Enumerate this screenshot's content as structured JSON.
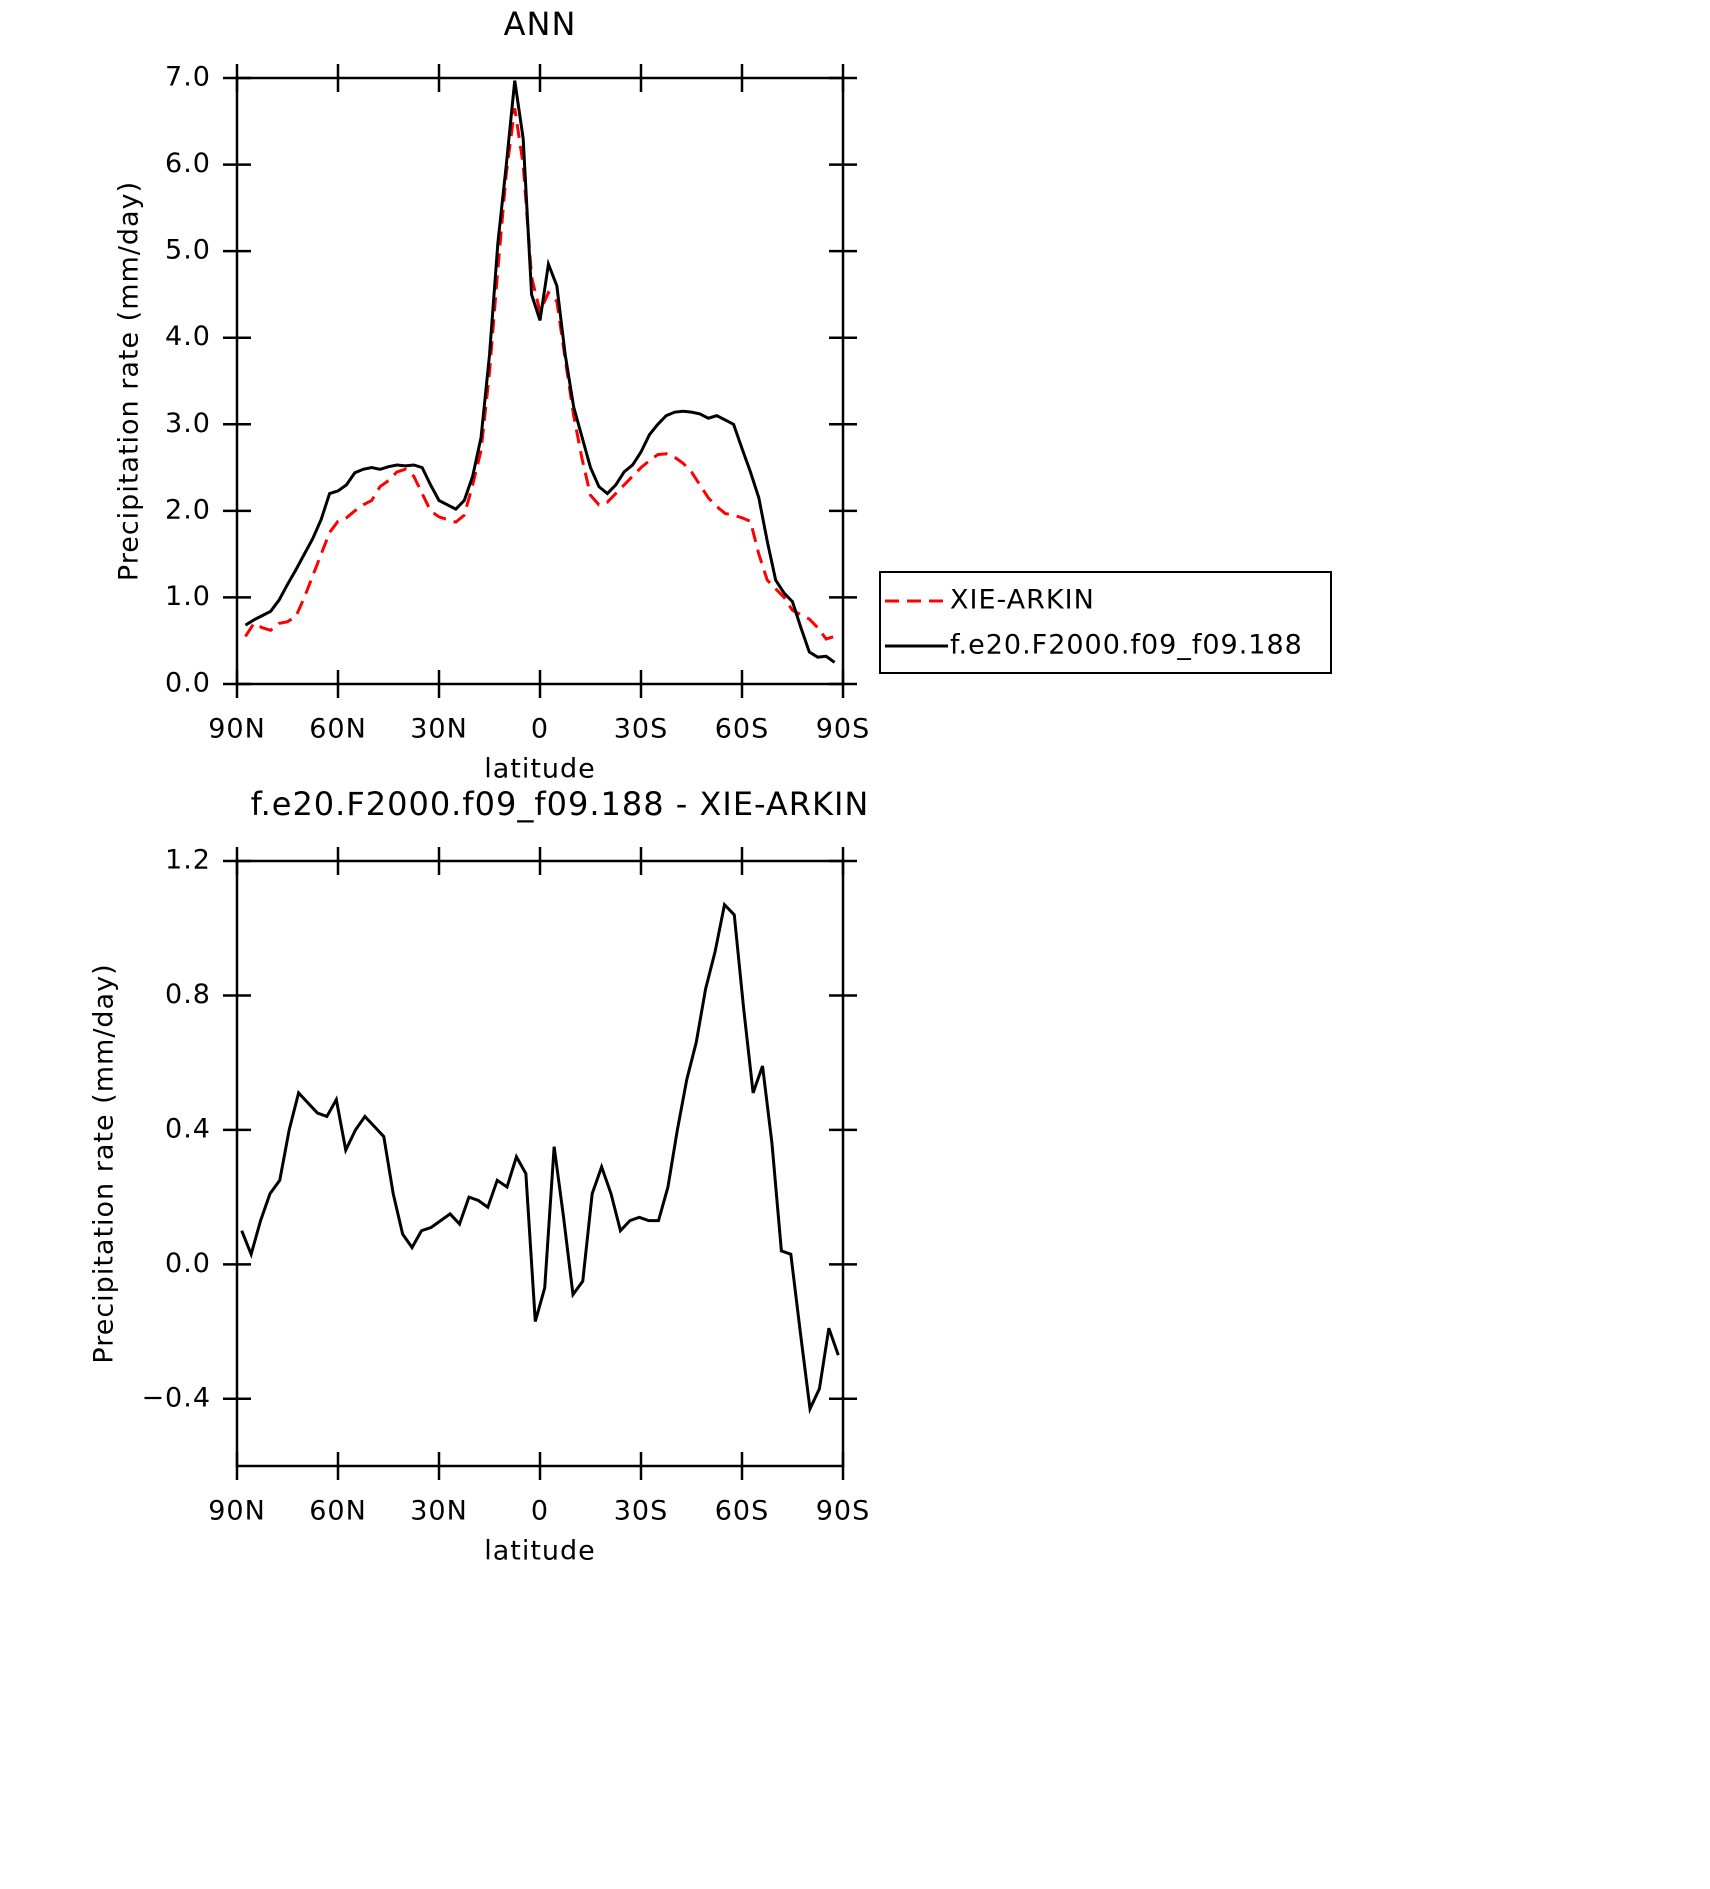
{
  "chart_data": [
    {
      "type": "line",
      "title": "ANN",
      "x_label": "latitude",
      "y_label": "Precipitation rate (mm/day)",
      "xlim": [
        90,
        -90
      ],
      "xticks": [
        {
          "value": 90,
          "label": "90N"
        },
        {
          "value": 60,
          "label": "60N"
        },
        {
          "value": 30,
          "label": "30N"
        },
        0,
        {
          "value": -30,
          "label": "30S"
        },
        {
          "value": -60,
          "label": "60S"
        },
        {
          "value": -90,
          "label": "90S"
        }
      ],
      "ylim": [
        0,
        7
      ],
      "yticks": [
        {
          "value": 0,
          "label": "0.0"
        },
        {
          "value": 1,
          "label": "1.0"
        },
        {
          "value": 2,
          "label": "2.0"
        },
        {
          "value": 3,
          "label": "3.0"
        },
        {
          "value": 4,
          "label": "4.0"
        },
        {
          "value": 5,
          "label": "5.0"
        },
        {
          "value": 6,
          "label": "6.0"
        },
        {
          "value": 7,
          "label": "7.0"
        }
      ],
      "legend": "right",
      "x": [
        87.5,
        85,
        82.5,
        80,
        77.5,
        75,
        72.5,
        70,
        67.5,
        65,
        62.5,
        60,
        57.5,
        55,
        52.5,
        50,
        47.5,
        45,
        42.5,
        40,
        37.5,
        35,
        32.5,
        30,
        27.5,
        25,
        22.5,
        20,
        17.5,
        15,
        12.5,
        10,
        7.5,
        5,
        2.5,
        0,
        -2.5,
        -5,
        -7.5,
        -10,
        -12.5,
        -15,
        -17.5,
        -20,
        -22.5,
        -25,
        -27.5,
        -30,
        -32.5,
        -35,
        -37.5,
        -40,
        -42.5,
        -45,
        -47.5,
        -50,
        -52.5,
        -55,
        -57.5,
        -60,
        -62.5,
        -65,
        -67.5,
        -70,
        -72.5,
        -75,
        -77.5,
        -80,
        -82.5,
        -85,
        -87.5
      ],
      "series": [
        {
          "name": "XIE-ARKIN",
          "color": "#ff0000",
          "line_style": "dashed",
          "values": [
            0.55,
            0.7,
            0.65,
            0.62,
            0.7,
            0.72,
            0.78,
            1.0,
            1.25,
            1.5,
            1.75,
            1.88,
            1.92,
            2.0,
            2.07,
            2.12,
            2.28,
            2.35,
            2.45,
            2.48,
            2.4,
            2.2,
            2.0,
            1.93,
            1.9,
            1.87,
            1.95,
            2.3,
            2.7,
            3.6,
            4.8,
            5.9,
            6.65,
            6.0,
            4.7,
            4.3,
            4.52,
            4.42,
            3.75,
            3.1,
            2.6,
            2.18,
            2.07,
            2.1,
            2.2,
            2.3,
            2.4,
            2.5,
            2.58,
            2.65,
            2.66,
            2.62,
            2.55,
            2.45,
            2.3,
            2.15,
            2.05,
            1.97,
            1.95,
            1.92,
            1.88,
            1.5,
            1.2,
            1.1,
            1.0,
            0.85,
            0.8,
            0.75,
            0.65,
            0.52,
            0.55
          ]
        },
        {
          "name": "f.e20.F2000.f09_f09.188",
          "color": "#000000",
          "line_style": "solid",
          "values": [
            0.68,
            0.74,
            0.79,
            0.84,
            0.97,
            1.15,
            1.32,
            1.5,
            1.68,
            1.9,
            2.2,
            2.23,
            2.3,
            2.44,
            2.48,
            2.5,
            2.48,
            2.51,
            2.53,
            2.52,
            2.53,
            2.5,
            2.3,
            2.12,
            2.07,
            2.02,
            2.12,
            2.4,
            2.85,
            3.8,
            5.1,
            6.0,
            6.97,
            6.3,
            4.5,
            4.2,
            4.85,
            4.6,
            3.8,
            3.2,
            2.85,
            2.5,
            2.28,
            2.2,
            2.3,
            2.45,
            2.53,
            2.68,
            2.88,
            3.0,
            3.1,
            3.14,
            3.15,
            3.14,
            3.12,
            3.07,
            3.1,
            3.05,
            3.0,
            2.72,
            2.45,
            2.15,
            1.65,
            1.2,
            1.05,
            0.95,
            0.65,
            0.37,
            0.31,
            0.32,
            0.25
          ]
        }
      ]
    },
    {
      "type": "line",
      "title": "f.e20.F2000.f09_f09.188 - XIE-ARKIN",
      "x_label": "latitude",
      "y_label": "Precipitation rate (mm/day)",
      "xlim": [
        90,
        -90
      ],
      "xticks": [
        {
          "value": 90,
          "label": "90N"
        },
        {
          "value": 60,
          "label": "60N"
        },
        {
          "value": 30,
          "label": "30N"
        },
        0,
        {
          "value": -30,
          "label": "30S"
        },
        {
          "value": -60,
          "label": "60S"
        },
        {
          "value": -90,
          "label": "90S"
        }
      ],
      "ylim": [
        -0.6,
        1.2
      ],
      "yticks": [
        {
          "value": 1.2,
          "label": "1.2"
        },
        {
          "value": 0.8,
          "label": "0.8"
        },
        {
          "value": 0.4,
          "label": "0.4"
        },
        {
          "value": 0,
          "label": "0.0"
        },
        {
          "value": -0.4,
          "label": "−0.4"
        }
      ],
      "x": [
        88.6,
        85.8,
        83.0,
        80.2,
        77.3,
        74.5,
        71.7,
        68.9,
        66.1,
        63.3,
        60.5,
        57.7,
        54.8,
        52.0,
        49.2,
        46.4,
        43.6,
        40.8,
        38.0,
        35.2,
        32.3,
        29.5,
        26.7,
        23.9,
        21.1,
        18.3,
        15.5,
        12.7,
        9.8,
        7.0,
        4.2,
        1.4,
        -1.4,
        -4.2,
        -7.0,
        -9.8,
        -12.7,
        -15.5,
        -18.3,
        -21.1,
        -23.9,
        -26.7,
        -29.5,
        -32.3,
        -35.2,
        -38.0,
        -40.8,
        -43.6,
        -46.4,
        -49.2,
        -52.0,
        -54.8,
        -57.7,
        -60.5,
        -63.3,
        -66.1,
        -68.9,
        -71.7,
        -74.5,
        -77.3,
        -80.2,
        -83.0,
        -85.8,
        -88.6
      ],
      "series": [
        {
          "color": "#000000",
          "line_style": "solid",
          "values": [
            0.1,
            0.03,
            0.13,
            0.21,
            0.25,
            0.4,
            0.51,
            0.48,
            0.45,
            0.44,
            0.49,
            0.34,
            0.4,
            0.44,
            0.41,
            0.38,
            0.21,
            0.09,
            0.05,
            0.1,
            0.11,
            0.13,
            0.15,
            0.12,
            0.2,
            0.19,
            0.17,
            0.25,
            0.23,
            0.32,
            0.27,
            -0.17,
            -0.07,
            0.35,
            0.14,
            -0.09,
            -0.05,
            0.21,
            0.29,
            0.21,
            0.1,
            0.13,
            0.14,
            0.13,
            0.13,
            0.23,
            0.4,
            0.55,
            0.66,
            0.82,
            0.93,
            1.07,
            1.04,
            0.76,
            0.51,
            0.59,
            0.36,
            0.04,
            0.03,
            -0.2,
            -0.43,
            -0.37,
            -0.19,
            -0.27
          ]
        }
      ]
    }
  ]
}
